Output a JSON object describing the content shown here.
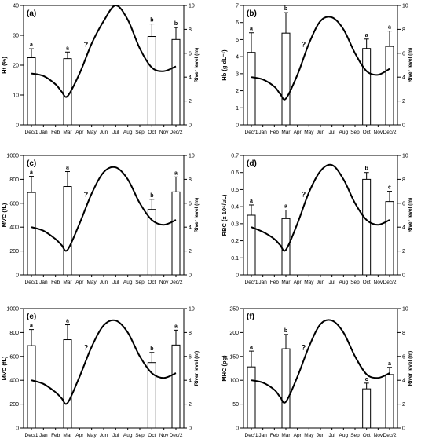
{
  "months": [
    "Dec/1",
    "Jan",
    "Feb",
    "Mar",
    "Apr",
    "May",
    "Jun",
    "Jul",
    "Aug",
    "Sep",
    "Oct",
    "Nov",
    "Dec/2"
  ],
  "river_axis_label": "River level (m)",
  "river_ticks": [
    0,
    2,
    4,
    6,
    8,
    10
  ],
  "question_mark": "?",
  "chart_data": [
    {
      "type": "bar",
      "panel_label": "(a)",
      "ylabel": "Ht (%)",
      "ylim": [
        0,
        40
      ],
      "yticks": [
        0,
        10,
        20,
        30,
        40
      ],
      "categories": [
        "Dec/1",
        "Mar",
        "Oct",
        "Dec/2"
      ],
      "values": [
        22.5,
        22.2,
        29.6,
        28.6
      ],
      "errors": [
        3.0,
        2.2,
        4.2,
        4.0
      ],
      "letters": [
        "a",
        "a",
        "b",
        "b"
      ],
      "river_level": {
        "x": [
          0,
          1,
          2,
          2.5,
          3,
          4,
          5,
          6,
          7,
          8,
          9,
          10,
          11,
          12
        ],
        "y": [
          4.3,
          4.1,
          3.4,
          2.8,
          2.4,
          4.3,
          6.8,
          8.7,
          10.0,
          8.8,
          6.4,
          4.8,
          4.5,
          4.9
        ],
        "ylim": [
          0,
          10
        ]
      }
    },
    {
      "type": "bar",
      "panel_label": "(b)",
      "ylabel": "Hb (g dL⁻¹)",
      "ylim": [
        0,
        7
      ],
      "yticks": [
        0,
        1,
        2,
        3,
        4,
        5,
        6,
        7
      ],
      "categories": [
        "Dec/1",
        "Mar",
        "Oct",
        "Dec/2"
      ],
      "values": [
        4.25,
        5.38,
        4.48,
        4.6
      ],
      "errors": [
        1.15,
        1.2,
        0.55,
        0.9
      ],
      "letters": [
        "a",
        "b",
        "a",
        "a"
      ],
      "river_level": {
        "x": [
          0,
          1,
          2,
          2.5,
          3,
          4,
          5,
          6,
          7,
          8,
          9,
          10,
          11,
          12
        ],
        "y": [
          4.0,
          3.8,
          3.2,
          2.6,
          2.2,
          4.2,
          6.8,
          8.7,
          9.0,
          8.0,
          6.0,
          4.5,
          4.2,
          4.7
        ],
        "ylim": [
          0,
          10
        ]
      }
    },
    {
      "type": "bar",
      "panel_label": "(c)",
      "ylabel": "MVC (fL)",
      "ylim": [
        0,
        1000
      ],
      "yticks": [
        0,
        200,
        400,
        600,
        800,
        1000
      ],
      "categories": [
        "Dec/1",
        "Mar",
        "Oct",
        "Dec/2"
      ],
      "values": [
        690,
        740,
        548,
        695
      ],
      "errors": [
        135,
        125,
        85,
        125
      ],
      "letters": [
        "a",
        "a",
        "b",
        "a"
      ],
      "river_level": {
        "x": [
          0,
          1,
          2,
          2.5,
          3,
          4,
          5,
          6,
          7,
          8,
          9,
          10,
          11,
          12
        ],
        "y": [
          4.0,
          3.7,
          3.0,
          2.5,
          2.1,
          4.3,
          6.8,
          8.6,
          9.0,
          8.0,
          6.0,
          4.6,
          4.2,
          4.6
        ],
        "ylim": [
          0,
          10
        ]
      }
    },
    {
      "type": "bar",
      "panel_label": "(d)",
      "ylabel": "RBC (x 10⁶/uL)",
      "ylim": [
        0,
        0.7
      ],
      "yticks": [
        0.0,
        0.1,
        0.2,
        0.3,
        0.4,
        0.5,
        0.6,
        0.7
      ],
      "categories": [
        "Dec/1",
        "Mar",
        "Oct",
        "Dec/2"
      ],
      "values": [
        0.35,
        0.33,
        0.56,
        0.43
      ],
      "errors": [
        0.06,
        0.05,
        0.04,
        0.06
      ],
      "letters": [
        "a",
        "a",
        "b",
        "c"
      ],
      "river_level": {
        "x": [
          0,
          1,
          2,
          2.5,
          3,
          4,
          5,
          6,
          7,
          8,
          9,
          10,
          11,
          12
        ],
        "y": [
          4.0,
          3.6,
          3.0,
          2.5,
          2.1,
          4.3,
          6.9,
          8.7,
          9.2,
          8.0,
          6.0,
          4.6,
          4.2,
          4.6
        ],
        "ylim": [
          0,
          10
        ]
      }
    },
    {
      "type": "bar",
      "panel_label": "(e)",
      "ylabel": "MVC (fL)",
      "ylim": [
        0,
        1000
      ],
      "yticks": [
        0,
        200,
        400,
        600,
        800,
        1000
      ],
      "categories": [
        "Dec/1",
        "Mar",
        "Oct",
        "Dec/2"
      ],
      "values": [
        690,
        740,
        548,
        695
      ],
      "errors": [
        135,
        125,
        85,
        125
      ],
      "letters": [
        "a",
        "a",
        "b",
        "a"
      ],
      "river_level": {
        "x": [
          0,
          1,
          2,
          2.5,
          3,
          4,
          5,
          6,
          7,
          8,
          9,
          10,
          11,
          12
        ],
        "y": [
          4.0,
          3.7,
          3.0,
          2.5,
          2.1,
          4.3,
          6.8,
          8.6,
          9.0,
          8.0,
          6.0,
          4.6,
          4.2,
          4.6
        ],
        "ylim": [
          0,
          10
        ]
      }
    },
    {
      "type": "bar",
      "panel_label": "(f)",
      "ylabel": "MHC (pg)",
      "ylim": [
        0,
        250
      ],
      "yticks": [
        0,
        50,
        100,
        150,
        200,
        250
      ],
      "categories": [
        "Dec/1",
        "Mar",
        "Oct",
        "Dec/2"
      ],
      "values": [
        128,
        166,
        82,
        112
      ],
      "errors": [
        33,
        30,
        12,
        15
      ],
      "letters": [
        "a",
        "b",
        "c",
        "a"
      ],
      "river_level": {
        "x": [
          0,
          1,
          2,
          2.5,
          3,
          4,
          5,
          6,
          7,
          8,
          9,
          10,
          11,
          12
        ],
        "y": [
          4.0,
          3.8,
          3.2,
          2.6,
          2.2,
          4.3,
          6.8,
          8.7,
          9.0,
          8.0,
          6.0,
          4.5,
          4.2,
          4.6
        ],
        "ylim": [
          0,
          10
        ]
      }
    }
  ]
}
